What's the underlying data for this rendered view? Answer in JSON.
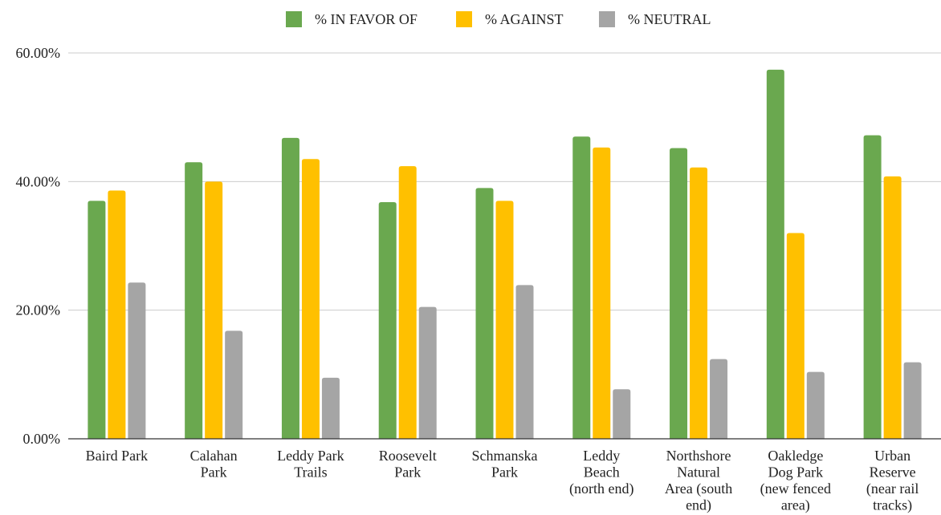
{
  "chart_data": {
    "type": "bar",
    "title": "",
    "xlabel": "",
    "ylabel": "",
    "categories": [
      [
        "Baird Park"
      ],
      [
        "Calahan",
        "Park"
      ],
      [
        "Leddy Park",
        "Trails"
      ],
      [
        "Roosevelt",
        "Park"
      ],
      [
        "Schmanska",
        "Park"
      ],
      [
        "Leddy",
        "Beach",
        "(north end)"
      ],
      [
        "Northshore",
        "Natural",
        "Area (south",
        "end)"
      ],
      [
        "Oakledge",
        "Dog Park",
        "(new fenced",
        "area)"
      ],
      [
        "Urban",
        "Reserve",
        "(near rail",
        "tracks)"
      ]
    ],
    "series": [
      {
        "name": "% IN FAVOR OF",
        "color": "#6aa84f",
        "values": [
          37.0,
          43.0,
          46.8,
          36.8,
          39.0,
          47.0,
          45.2,
          57.4,
          47.2
        ]
      },
      {
        "name": "% AGAINST",
        "color": "#ffc000",
        "values": [
          38.6,
          40.0,
          43.5,
          42.4,
          37.0,
          45.3,
          42.2,
          32.0,
          40.8
        ]
      },
      {
        "name": "% NEUTRAL",
        "color": "#a5a5a5",
        "values": [
          24.3,
          16.8,
          9.5,
          20.5,
          23.9,
          7.7,
          12.4,
          10.4,
          11.9
        ]
      }
    ],
    "ylim": [
      0,
      60
    ],
    "yticks": [
      {
        "value": 0,
        "label": "0.00%"
      },
      {
        "value": 20,
        "label": "20.00%"
      },
      {
        "value": 40,
        "label": "40.00%"
      },
      {
        "value": 60,
        "label": "60.00%"
      }
    ],
    "grid": true,
    "legend_position": "top"
  }
}
